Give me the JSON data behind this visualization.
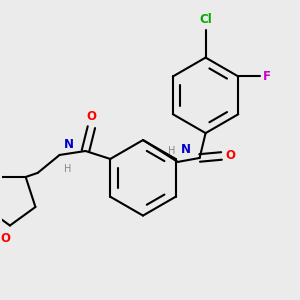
{
  "background_color": "#ebebeb",
  "bond_color": "#000000",
  "atom_colors": {
    "O": "#ff0000",
    "N": "#0000cd",
    "Cl": "#00aa00",
    "F": "#cc00cc",
    "H": "#888888"
  },
  "figsize": [
    3.0,
    3.0
  ],
  "dpi": 100
}
